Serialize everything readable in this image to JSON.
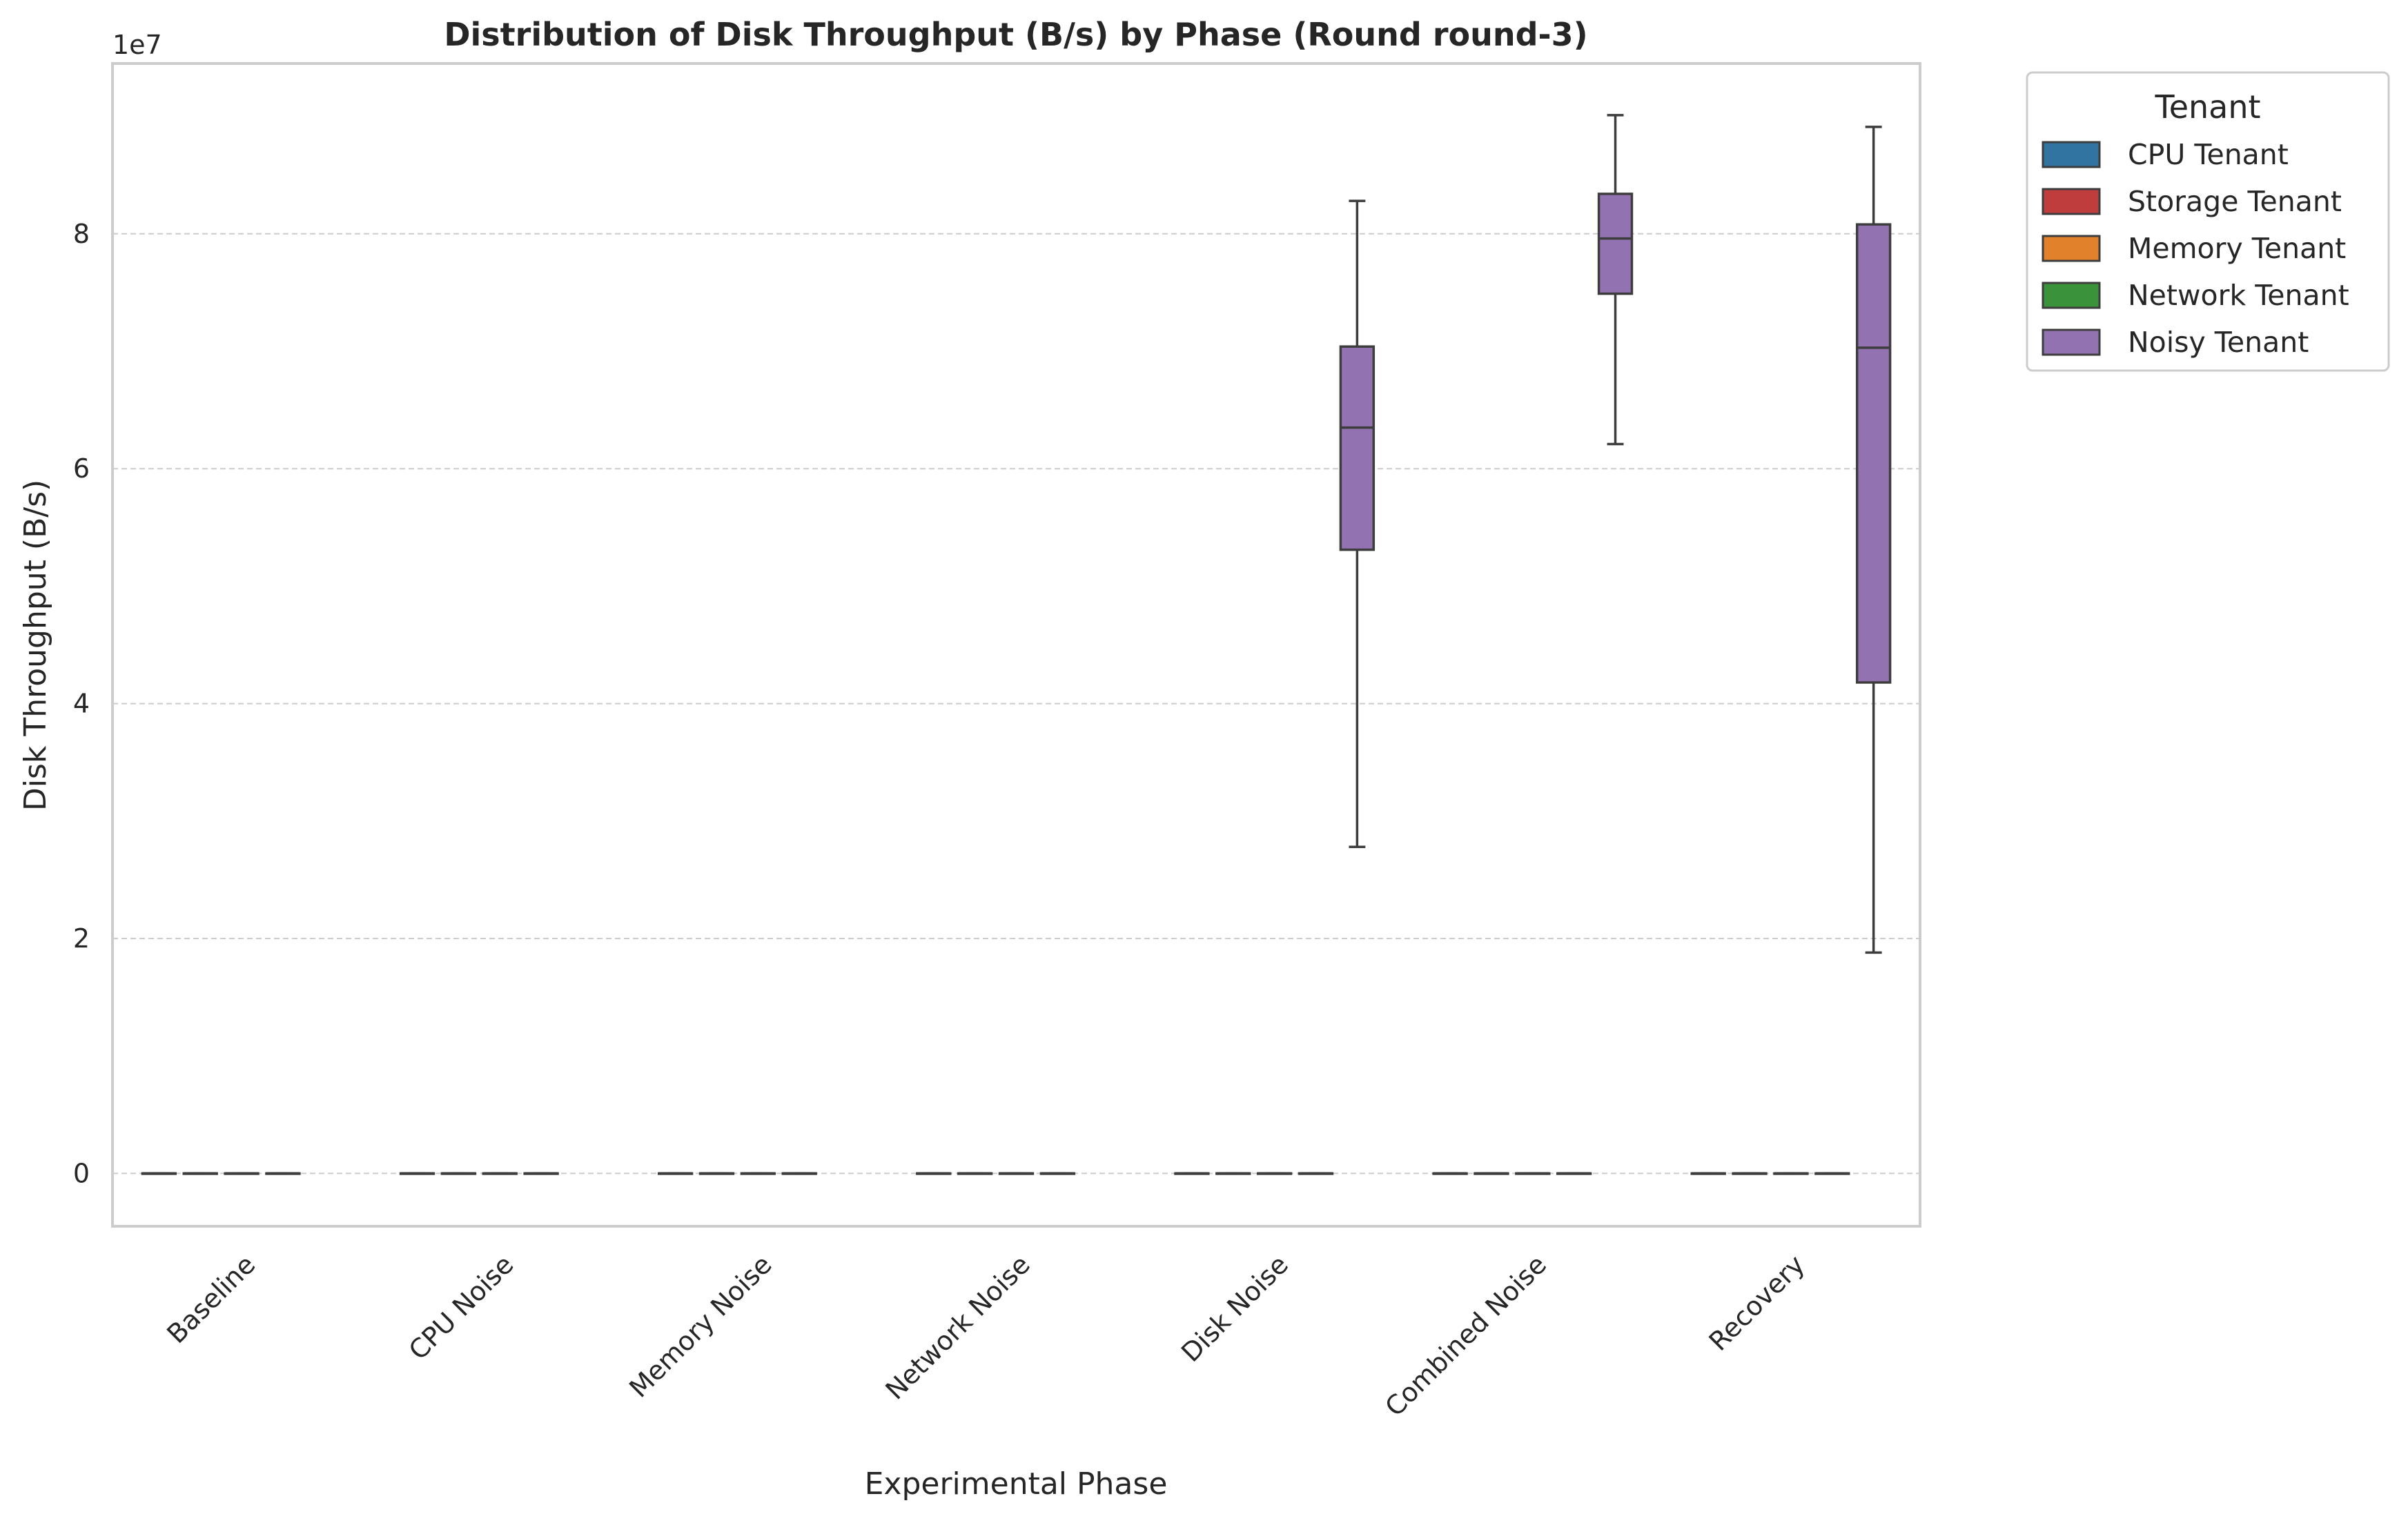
{
  "chart_data": {
    "type": "box",
    "title": "Distribution of Disk Throughput (B/s) by Phase (Round round-3)",
    "xlabel": "Experimental Phase",
    "ylabel": "Disk Throughput (B/s)",
    "y_scale_label": "1e7",
    "ylim": [
      -4500000,
      94500000
    ],
    "yticks": [
      0,
      20000000,
      40000000,
      60000000,
      80000000
    ],
    "ytick_labels": [
      "0",
      "2",
      "4",
      "6",
      "8"
    ],
    "grid": "horizontal dashed",
    "categories": [
      "Baseline",
      "CPU Noise",
      "Memory Noise",
      "Network Noise",
      "Disk Noise",
      "Combined Noise",
      "Recovery"
    ],
    "legend": {
      "title": "Tenant",
      "placement": "outside right"
    },
    "series": [
      {
        "name": "CPU Tenant",
        "color": "#3274a1",
        "boxes": [
          {
            "min": 0,
            "q1": 0,
            "median": 0,
            "q3": 0,
            "max": 0
          },
          {
            "min": 0,
            "q1": 0,
            "median": 0,
            "q3": 0,
            "max": 0
          },
          {
            "min": 0,
            "q1": 0,
            "median": 0,
            "q3": 0,
            "max": 0
          },
          {
            "min": 0,
            "q1": 0,
            "median": 0,
            "q3": 0,
            "max": 0
          },
          {
            "min": 0,
            "q1": 0,
            "median": 0,
            "q3": 0,
            "max": 0
          },
          {
            "min": 0,
            "q1": 0,
            "median": 0,
            "q3": 0,
            "max": 0
          },
          {
            "min": 0,
            "q1": 0,
            "median": 0,
            "q3": 0,
            "max": 0
          }
        ]
      },
      {
        "name": "Storage Tenant",
        "color": "#c03d3e",
        "boxes": [
          {
            "min": 0,
            "q1": 0,
            "median": 0,
            "q3": 0,
            "max": 0
          },
          {
            "min": 0,
            "q1": 0,
            "median": 0,
            "q3": 0,
            "max": 0
          },
          {
            "min": 0,
            "q1": 0,
            "median": 0,
            "q3": 0,
            "max": 0
          },
          {
            "min": 0,
            "q1": 0,
            "median": 0,
            "q3": 0,
            "max": 0
          },
          {
            "min": 0,
            "q1": 0,
            "median": 0,
            "q3": 0,
            "max": 0
          },
          {
            "min": 0,
            "q1": 0,
            "median": 0,
            "q3": 0,
            "max": 0
          },
          {
            "min": 0,
            "q1": 0,
            "median": 0,
            "q3": 0,
            "max": 0
          }
        ]
      },
      {
        "name": "Memory Tenant",
        "color": "#e1812c",
        "boxes": [
          {
            "min": 0,
            "q1": 0,
            "median": 0,
            "q3": 0,
            "max": 0
          },
          {
            "min": 0,
            "q1": 0,
            "median": 0,
            "q3": 0,
            "max": 0
          },
          {
            "min": 0,
            "q1": 0,
            "median": 0,
            "q3": 0,
            "max": 0
          },
          {
            "min": 0,
            "q1": 0,
            "median": 0,
            "q3": 0,
            "max": 0
          },
          {
            "min": 0,
            "q1": 0,
            "median": 0,
            "q3": 0,
            "max": 0
          },
          {
            "min": 0,
            "q1": 0,
            "median": 0,
            "q3": 0,
            "max": 0
          },
          {
            "min": 0,
            "q1": 0,
            "median": 0,
            "q3": 0,
            "max": 0
          }
        ]
      },
      {
        "name": "Network Tenant",
        "color": "#3a923a",
        "boxes": [
          {
            "min": 0,
            "q1": 0,
            "median": 0,
            "q3": 0,
            "max": 0
          },
          {
            "min": 0,
            "q1": 0,
            "median": 0,
            "q3": 0,
            "max": 0
          },
          {
            "min": 0,
            "q1": 0,
            "median": 0,
            "q3": 0,
            "max": 0
          },
          {
            "min": 0,
            "q1": 0,
            "median": 0,
            "q3": 0,
            "max": 0
          },
          {
            "min": 0,
            "q1": 0,
            "median": 0,
            "q3": 0,
            "max": 0
          },
          {
            "min": 0,
            "q1": 0,
            "median": 0,
            "q3": 0,
            "max": 0
          },
          {
            "min": 0,
            "q1": 0,
            "median": 0,
            "q3": 0,
            "max": 0
          }
        ]
      },
      {
        "name": "Noisy Tenant",
        "color": "#9372b2",
        "boxes": [
          null,
          null,
          null,
          null,
          {
            "min": 27800000,
            "q1": 53100000,
            "median": 63500000,
            "q3": 70400000,
            "max": 82800000
          },
          {
            "min": 62100000,
            "q1": 74900000,
            "median": 79600000,
            "q3": 83400000,
            "max": 90100000
          },
          {
            "min": 18800000,
            "q1": 41800000,
            "median": 70300000,
            "q3": 80800000,
            "max": 89100000
          }
        ]
      }
    ]
  }
}
